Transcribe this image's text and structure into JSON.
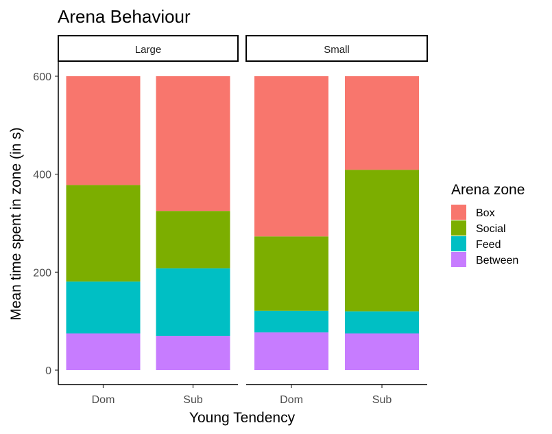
{
  "chart_data": {
    "type": "bar",
    "stacked": true,
    "title": "Arena Behaviour",
    "xlabel": "Young Tendency",
    "ylabel": "Mean time spent in zone (in s)",
    "ylim": [
      0,
      600
    ],
    "yticks": [
      0,
      200,
      400,
      600
    ],
    "grid": false,
    "legend": {
      "title": "Arena zone",
      "position": "right",
      "entries": [
        "Box",
        "Social",
        "Feed",
        "Between"
      ]
    },
    "colors": {
      "Box": "#F8766D",
      "Social": "#7CAE00",
      "Feed": "#00BFC4",
      "Between": "#C77CFF"
    },
    "categories": [
      "Dom",
      "Sub"
    ],
    "facets": [
      {
        "label": "Large",
        "series": [
          {
            "name": "Between",
            "values": [
              75,
              70
            ]
          },
          {
            "name": "Feed",
            "values": [
              106,
              138
            ]
          },
          {
            "name": "Social",
            "values": [
              197,
              117
            ]
          },
          {
            "name": "Box",
            "values": [
              222,
              275
            ]
          }
        ]
      },
      {
        "label": "Small",
        "series": [
          {
            "name": "Between",
            "values": [
              77,
              75
            ]
          },
          {
            "name": "Feed",
            "values": [
              44,
              45
            ]
          },
          {
            "name": "Social",
            "values": [
              152,
              289
            ]
          },
          {
            "name": "Box",
            "values": [
              327,
              191
            ]
          }
        ]
      }
    ]
  }
}
